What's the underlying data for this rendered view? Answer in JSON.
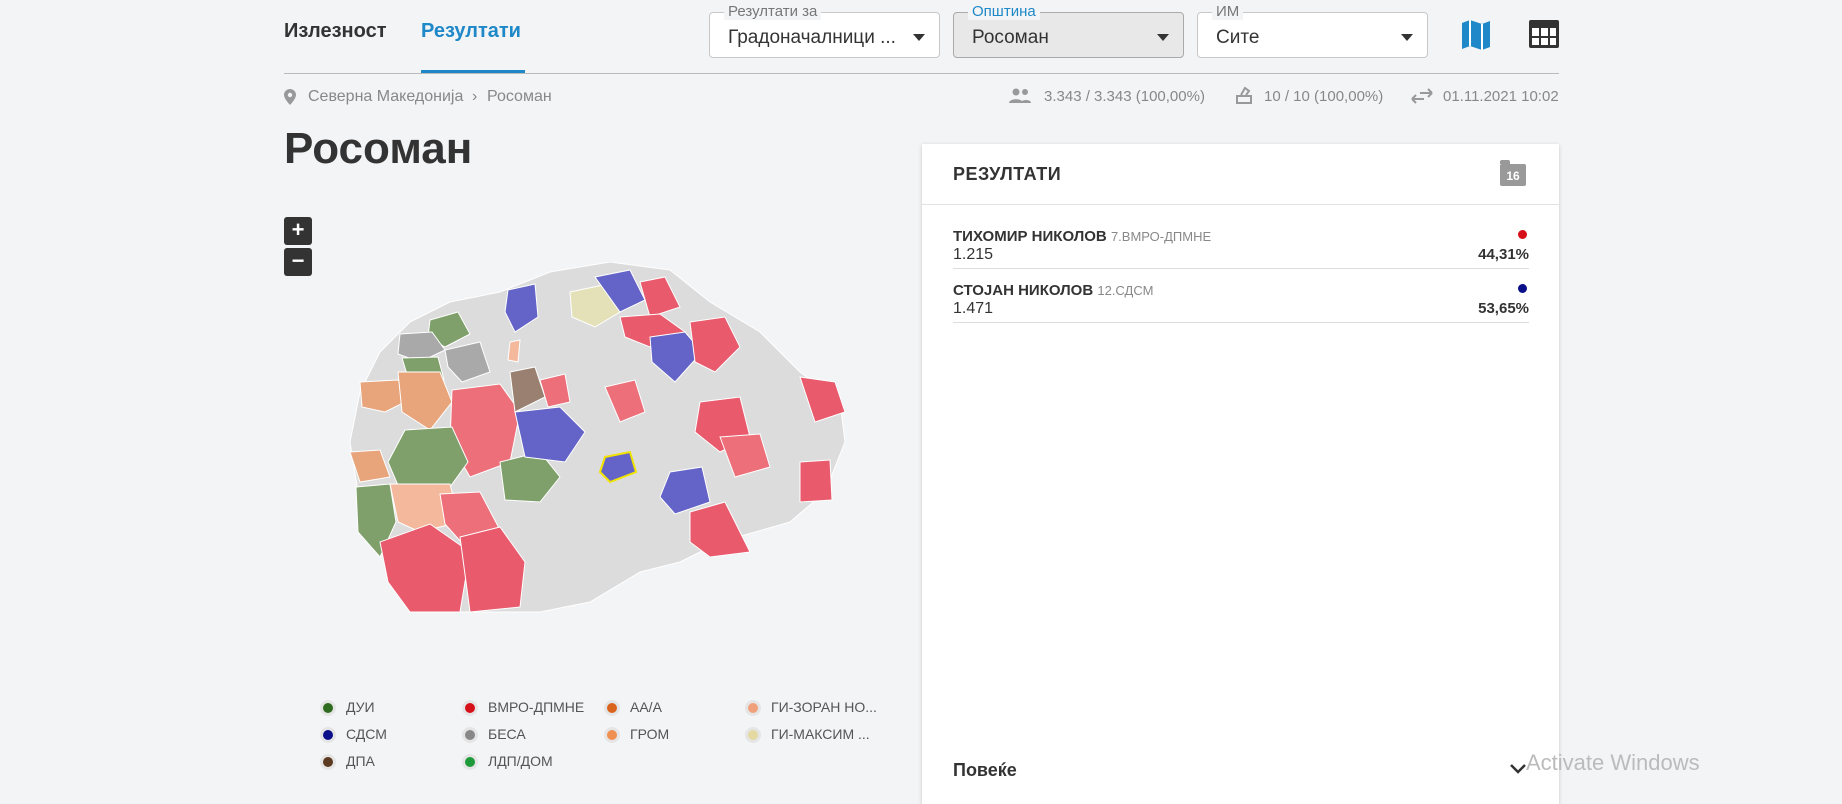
{
  "tabs": {
    "turnout": "Излезност",
    "results": "Резултати"
  },
  "filters": {
    "results_for": {
      "label": "Резултати за",
      "value": "Градоначалници  ..."
    },
    "municipality": {
      "label": "Општина",
      "value": "Росоман"
    },
    "name": {
      "label": "ИМ",
      "value": "Сите"
    }
  },
  "breadcrumb": {
    "country": "Северна Македонија",
    "separator": "›",
    "place": "Росоман"
  },
  "stats": {
    "voters": "3.343  /  3.343 (100,00%)",
    "stations": "10  /  10 (100,00%)",
    "updated": "01.11.2021 10:02"
  },
  "page_title": "Росоман",
  "zoom": {
    "in": "+",
    "out": "−"
  },
  "legend": [
    {
      "label": "ДУИ",
      "color": "#2e6b1e"
    },
    {
      "label": "ВМРО-ДПМНЕ",
      "color": "#d61019"
    },
    {
      "label": "АА/А",
      "color": "#d9641e"
    },
    {
      "label": "ГИ-ЗОРАН НО...",
      "color": "#f0a07a"
    },
    {
      "label": "СДСМ",
      "color": "#0b0f8a"
    },
    {
      "label": "БЕСА",
      "color": "#888888"
    },
    {
      "label": "ГРОМ",
      "color": "#f09050"
    },
    {
      "label": "ГИ-МАКСИМ ...",
      "color": "#e4d9a0"
    },
    {
      "label": "ДПА",
      "color": "#5a3a20"
    },
    {
      "label": "ЛДП/ДОМ",
      "color": "#1e9a3a"
    }
  ],
  "results_panel": {
    "title": "РЕЗУЛТАТИ",
    "badge": "16",
    "candidates": [
      {
        "name": "ТИХОМИР НИКОЛОВ",
        "party": "7.ВМРО-ДПМНЕ",
        "votes": "1.215",
        "percent": "44,31%",
        "color": "#d61019"
      },
      {
        "name": "СТОЈАН НИКОЛОВ",
        "party": "12.СДСМ",
        "votes": "1.471",
        "percent": "53,65%",
        "color": "#0b0f8a"
      }
    ],
    "more": "Повеќе"
  },
  "watermark": "Activate Windows"
}
